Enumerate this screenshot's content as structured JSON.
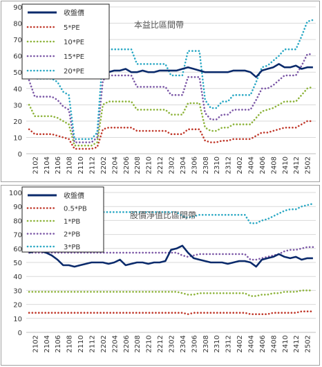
{
  "chart_data": [
    {
      "type": "line",
      "title": "本益比區間帶",
      "x": [
        "2101",
        "2102",
        "2103",
        "2104",
        "2105",
        "2106",
        "2107",
        "2108",
        "2109",
        "2110",
        "2111",
        "2112",
        "2201",
        "2202",
        "2203",
        "2204",
        "2205",
        "2206",
        "2207",
        "2208",
        "2209",
        "2210",
        "2211",
        "2212",
        "2301",
        "2302",
        "2303",
        "2304",
        "2305",
        "2306",
        "2307",
        "2308",
        "2309",
        "2310",
        "2311",
        "2312",
        "2401",
        "2402",
        "2403",
        "2404",
        "2405",
        "2406",
        "2407",
        "2408",
        "2409",
        "2410",
        "2411",
        "2412",
        "2501",
        "2502",
        "2503"
      ],
      "x_tick_labels": [
        "2102",
        "2104",
        "2106",
        "2108",
        "2110",
        "2112",
        "2202",
        "2204",
        "2206",
        "2208",
        "2210",
        "2212",
        "2302",
        "2304",
        "2306",
        "2308",
        "2310",
        "2312",
        "2402",
        "2404",
        "2406",
        "2408",
        "2410",
        "2412",
        "2502"
      ],
      "ylim": [
        0,
        90
      ],
      "y_ticks": [
        0,
        10,
        20,
        30,
        40,
        50,
        60,
        70,
        80,
        90
      ],
      "legend_position": "top-left",
      "series": [
        {
          "name": "收盤價",
          "style": "solid",
          "color": "#0a2a6b",
          "values": [
            58,
            54,
            52,
            51,
            50,
            49,
            49,
            48,
            47,
            48,
            49,
            49,
            50,
            50,
            50,
            51,
            51,
            52,
            50,
            50,
            51,
            50,
            50,
            51,
            51,
            51,
            51,
            52,
            53,
            52,
            51,
            50,
            50,
            50,
            50,
            50,
            51,
            51,
            51,
            50,
            47,
            51,
            52,
            53,
            55,
            53,
            53,
            54,
            52,
            53,
            53
          ]
        },
        {
          "name": "5*PE",
          "style": "dotted",
          "color": "#c0392b",
          "values": [
            15,
            12,
            12,
            12,
            12,
            11,
            10,
            9,
            3,
            3,
            3,
            3,
            4,
            15,
            16,
            16,
            16,
            16,
            16,
            14,
            14,
            14,
            14,
            14,
            14,
            12,
            12,
            12,
            15,
            15,
            15,
            8,
            7,
            7,
            8,
            8,
            9,
            9,
            9,
            9,
            11,
            13,
            13,
            14,
            15,
            16,
            16,
            16,
            18,
            20,
            20
          ]
        },
        {
          "name": "10*PE",
          "style": "dotted",
          "color": "#8db33a",
          "values": [
            30,
            23,
            23,
            23,
            23,
            22,
            20,
            18,
            5,
            5,
            5,
            5,
            7,
            30,
            32,
            32,
            32,
            32,
            32,
            27,
            27,
            27,
            27,
            27,
            27,
            24,
            24,
            24,
            31,
            31,
            31,
            16,
            14,
            14,
            16,
            16,
            18,
            18,
            18,
            18,
            22,
            26,
            27,
            28,
            30,
            32,
            32,
            32,
            36,
            40,
            41
          ]
        },
        {
          "name": "15*PE",
          "style": "dotted",
          "color": "#7b57a6",
          "values": [
            45,
            35,
            35,
            35,
            35,
            33,
            29,
            27,
            7,
            7,
            7,
            7,
            10,
            45,
            48,
            48,
            48,
            48,
            48,
            41,
            41,
            41,
            41,
            41,
            41,
            36,
            36,
            36,
            47,
            47,
            47,
            25,
            21,
            21,
            24,
            24,
            27,
            27,
            27,
            27,
            33,
            40,
            40,
            42,
            45,
            48,
            48,
            48,
            54,
            61,
            61
          ]
        },
        {
          "name": "20*PE",
          "style": "dotted",
          "color": "#2aa8c4",
          "values": [
            60,
            46,
            46,
            46,
            46,
            44,
            38,
            36,
            9,
            9,
            9,
            9,
            13,
            61,
            64,
            64,
            64,
            64,
            64,
            55,
            55,
            55,
            55,
            55,
            55,
            48,
            48,
            48,
            63,
            63,
            63,
            33,
            28,
            28,
            32,
            32,
            36,
            36,
            36,
            36,
            44,
            53,
            54,
            57,
            60,
            64,
            64,
            64,
            72,
            81,
            82
          ]
        }
      ]
    },
    {
      "type": "line",
      "title": "股價淨值比區間帶",
      "x": [
        "2101",
        "2102",
        "2103",
        "2104",
        "2105",
        "2106",
        "2107",
        "2108",
        "2109",
        "2110",
        "2111",
        "2112",
        "2201",
        "2202",
        "2203",
        "2204",
        "2205",
        "2206",
        "2207",
        "2208",
        "2209",
        "2210",
        "2211",
        "2212",
        "2301",
        "2302",
        "2303",
        "2304",
        "2305",
        "2306",
        "2307",
        "2308",
        "2309",
        "2310",
        "2311",
        "2312",
        "2401",
        "2402",
        "2403",
        "2404",
        "2405",
        "2406",
        "2407",
        "2408",
        "2409",
        "2410",
        "2411",
        "2412",
        "2501",
        "2502",
        "2503"
      ],
      "x_tick_labels": [
        "2102",
        "2104",
        "2106",
        "2108",
        "2110",
        "2112",
        "2202",
        "2204",
        "2206",
        "2208",
        "2210",
        "2212",
        "2302",
        "2304",
        "2306",
        "2308",
        "2310",
        "2312",
        "2402",
        "2404",
        "2406",
        "2408",
        "2410",
        "2412",
        "2502"
      ],
      "ylim": [
        0,
        100
      ],
      "y_ticks": [
        0,
        10,
        20,
        30,
        40,
        50,
        60,
        70,
        80,
        90,
        100
      ],
      "legend_position": "top-left",
      "series": [
        {
          "name": "收盤價",
          "style": "solid",
          "color": "#0a2a6b",
          "values": [
            57,
            58,
            58,
            57,
            55,
            52,
            48,
            48,
            47,
            48,
            49,
            50,
            50,
            50,
            49,
            50,
            52,
            48,
            49,
            50,
            50,
            49,
            50,
            50,
            51,
            59,
            60,
            62,
            57,
            53,
            52,
            51,
            50,
            50,
            50,
            49,
            50,
            51,
            51,
            50,
            47,
            52,
            53,
            54,
            56,
            54,
            53,
            54,
            52,
            53,
            53
          ]
        },
        {
          "name": "0.5*PB",
          "style": "dotted",
          "color": "#c0392b",
          "values": [
            14,
            14,
            14,
            14,
            14,
            14,
            14,
            14,
            14,
            14,
            14,
            14,
            14,
            14,
            14,
            14,
            14,
            14,
            14,
            14,
            14,
            14,
            14,
            14,
            14,
            14,
            14,
            14,
            13,
            14,
            14,
            14,
            14,
            14,
            14,
            14,
            14,
            14,
            14,
            13,
            13,
            13,
            13,
            14,
            14,
            14,
            14,
            14,
            15,
            15,
            15
          ]
        },
        {
          "name": "1*PB",
          "style": "dotted",
          "color": "#8db33a",
          "values": [
            29,
            29,
            29,
            29,
            29,
            29,
            29,
            29,
            29,
            29,
            29,
            29,
            29,
            29,
            29,
            29,
            29,
            29,
            29,
            29,
            29,
            29,
            29,
            29,
            29,
            29,
            29,
            28,
            27,
            27,
            28,
            28,
            28,
            28,
            28,
            28,
            28,
            28,
            28,
            26,
            26,
            27,
            27,
            28,
            28,
            29,
            29,
            29,
            30,
            30,
            30
          ]
        },
        {
          "name": "2*PB",
          "style": "dotted",
          "color": "#7b57a6",
          "values": [
            57,
            57,
            57,
            57,
            57,
            57,
            57,
            57,
            57,
            57,
            57,
            57,
            57,
            57,
            57,
            57,
            57,
            57,
            57,
            57,
            57,
            57,
            57,
            57,
            57,
            57,
            57,
            55,
            54,
            55,
            56,
            56,
            56,
            56,
            56,
            56,
            56,
            56,
            56,
            52,
            52,
            53,
            54,
            55,
            56,
            58,
            59,
            59,
            60,
            61,
            61
          ]
        },
        {
          "name": "3*PB",
          "style": "dotted",
          "color": "#2aa8c4",
          "values": [
            86,
            86,
            86,
            86,
            86,
            86,
            86,
            86,
            86,
            86,
            86,
            86,
            86,
            86,
            86,
            86,
            86,
            86,
            86,
            86,
            86,
            86,
            86,
            86,
            86,
            86,
            86,
            83,
            82,
            83,
            84,
            84,
            84,
            84,
            84,
            84,
            84,
            84,
            84,
            78,
            78,
            80,
            81,
            83,
            85,
            87,
            88,
            88,
            90,
            91,
            92
          ]
        }
      ]
    }
  ]
}
